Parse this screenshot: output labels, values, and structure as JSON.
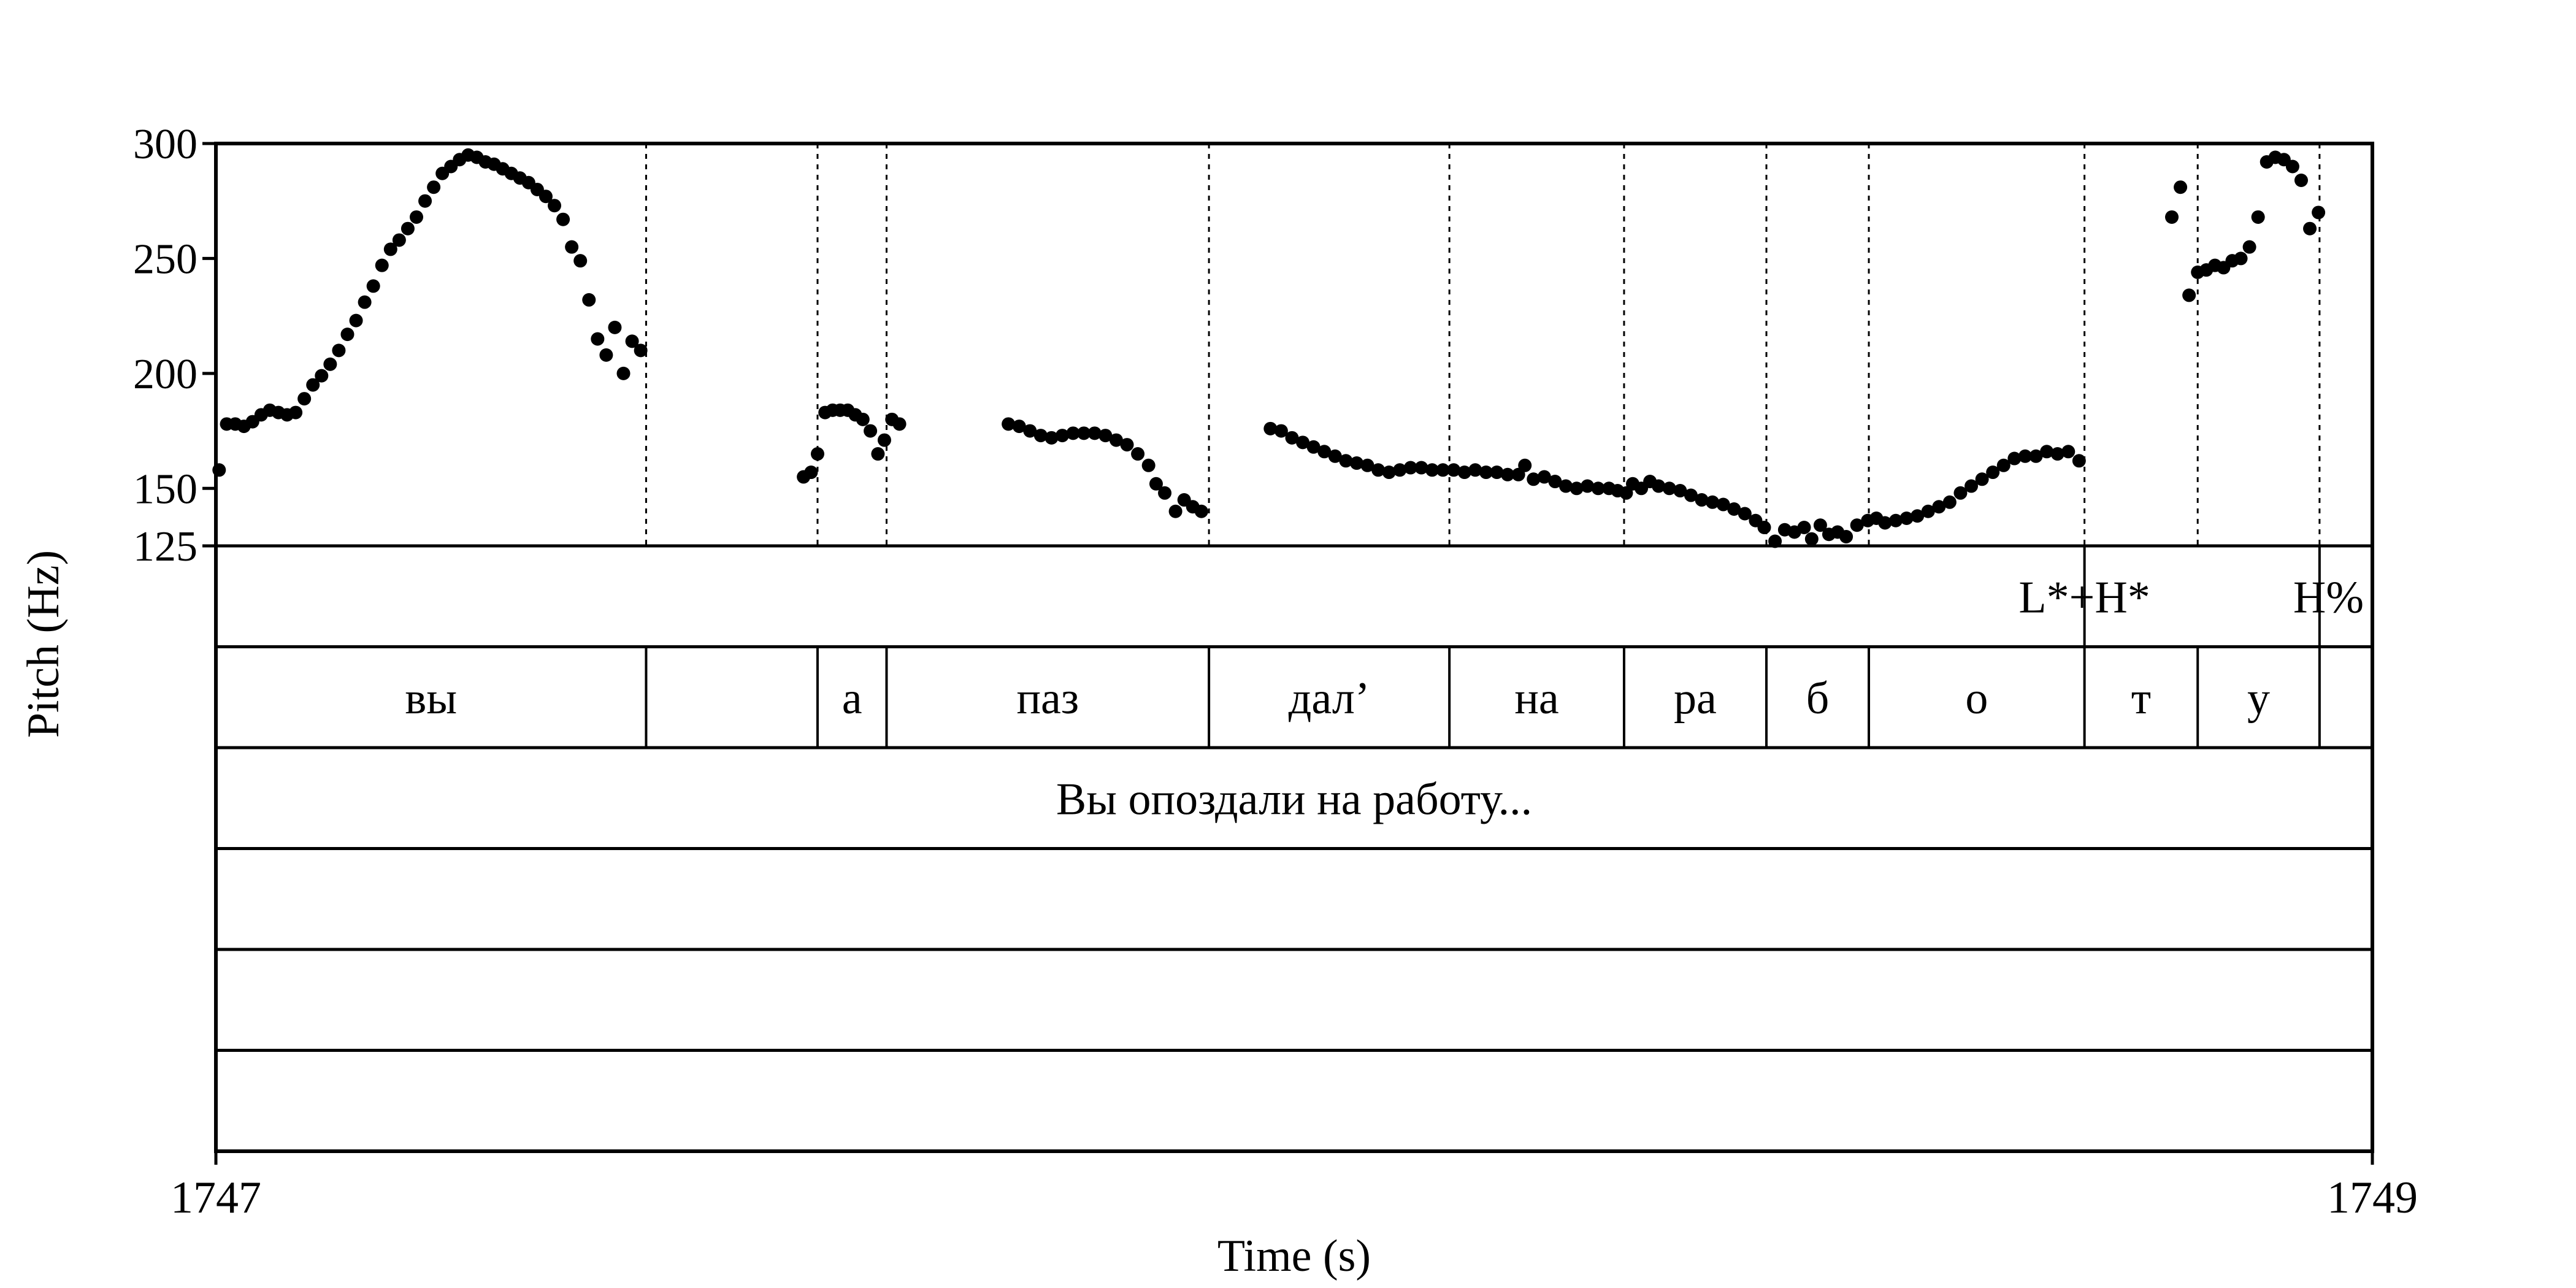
{
  "chart_data": {
    "type": "scatter",
    "x_axis": {
      "label": "Time (s)",
      "min": 1747,
      "max": 1749,
      "tick_labels": [
        "1747",
        "1749"
      ]
    },
    "y_axis": {
      "label": "Pitch (Hz)",
      "min": 125,
      "max": 300,
      "ticks": [
        125,
        150,
        200,
        250,
        300
      ],
      "tick_labels": [
        "125",
        "150",
        "200",
        "250",
        "300"
      ]
    },
    "boundaries": [
      1747.399,
      1747.558,
      1747.622,
      1747.921,
      1748.144,
      1748.306,
      1748.438,
      1748.533,
      1748.733,
      1748.838,
      1748.951
    ],
    "tiers": [
      {
        "name": "tones",
        "intervals": [],
        "points": [
          {
            "time": 1748.733,
            "label": "L*+H*"
          },
          {
            "time": 1748.951,
            "label": "H%"
          }
        ]
      },
      {
        "name": "syllables",
        "intervals": [
          {
            "start": 1747.0,
            "end": 1747.399,
            "label": "вы"
          },
          {
            "start": 1747.399,
            "end": 1747.558,
            "label": ""
          },
          {
            "start": 1747.558,
            "end": 1747.622,
            "label": "а"
          },
          {
            "start": 1747.622,
            "end": 1747.921,
            "label": "паз"
          },
          {
            "start": 1747.921,
            "end": 1748.144,
            "label": "дал’"
          },
          {
            "start": 1748.144,
            "end": 1748.306,
            "label": "на"
          },
          {
            "start": 1748.306,
            "end": 1748.438,
            "label": "ра"
          },
          {
            "start": 1748.438,
            "end": 1748.533,
            "label": "б"
          },
          {
            "start": 1748.533,
            "end": 1748.733,
            "label": "о"
          },
          {
            "start": 1748.733,
            "end": 1748.838,
            "label": "т"
          },
          {
            "start": 1748.838,
            "end": 1748.951,
            "label": "у"
          },
          {
            "start": 1748.951,
            "end": 1749.0,
            "label": ""
          }
        ],
        "points": []
      },
      {
        "name": "utterance",
        "intervals": [
          {
            "start": 1747.0,
            "end": 1749.0,
            "label": "Вы опоздали на работу..."
          }
        ],
        "points": []
      },
      {
        "name": "empty-1",
        "intervals": [],
        "points": []
      },
      {
        "name": "empty-2",
        "intervals": [],
        "points": []
      },
      {
        "name": "empty-3",
        "intervals": [],
        "points": []
      }
    ],
    "pitch_points": [
      [
        1747.003,
        158
      ],
      [
        1747.01,
        178
      ],
      [
        1747.018,
        178
      ],
      [
        1747.026,
        177
      ],
      [
        1747.034,
        179
      ],
      [
        1747.042,
        182
      ],
      [
        1747.05,
        184
      ],
      [
        1747.058,
        183
      ],
      [
        1747.066,
        182
      ],
      [
        1747.074,
        183
      ],
      [
        1747.082,
        189
      ],
      [
        1747.09,
        195
      ],
      [
        1747.098,
        199
      ],
      [
        1747.106,
        204
      ],
      [
        1747.114,
        210
      ],
      [
        1747.122,
        217
      ],
      [
        1747.13,
        223
      ],
      [
        1747.138,
        231
      ],
      [
        1747.146,
        238
      ],
      [
        1747.154,
        247
      ],
      [
        1747.162,
        254
      ],
      [
        1747.17,
        258
      ],
      [
        1747.178,
        263
      ],
      [
        1747.186,
        268
      ],
      [
        1747.194,
        275
      ],
      [
        1747.202,
        281
      ],
      [
        1747.21,
        287
      ],
      [
        1747.218,
        290
      ],
      [
        1747.226,
        293
      ],
      [
        1747.234,
        295
      ],
      [
        1747.242,
        294
      ],
      [
        1747.25,
        292
      ],
      [
        1747.258,
        291
      ],
      [
        1747.266,
        289
      ],
      [
        1747.274,
        287
      ],
      [
        1747.282,
        285
      ],
      [
        1747.29,
        283
      ],
      [
        1747.298,
        280
      ],
      [
        1747.306,
        277
      ],
      [
        1747.314,
        273
      ],
      [
        1747.322,
        267
      ],
      [
        1747.33,
        255
      ],
      [
        1747.338,
        249
      ],
      [
        1747.346,
        232
      ],
      [
        1747.354,
        215
      ],
      [
        1747.362,
        208
      ],
      [
        1747.37,
        220
      ],
      [
        1747.378,
        200
      ],
      [
        1747.386,
        214
      ],
      [
        1747.394,
        210
      ],
      [
        1747.545,
        155
      ],
      [
        1747.552,
        157
      ],
      [
        1747.558,
        165
      ],
      [
        1747.565,
        183
      ],
      [
        1747.572,
        184
      ],
      [
        1747.579,
        184
      ],
      [
        1747.586,
        184
      ],
      [
        1747.593,
        182
      ],
      [
        1747.6,
        180
      ],
      [
        1747.607,
        175
      ],
      [
        1747.614,
        165
      ],
      [
        1747.62,
        171
      ],
      [
        1747.627,
        180
      ],
      [
        1747.634,
        178
      ],
      [
        1747.735,
        178
      ],
      [
        1747.745,
        177
      ],
      [
        1747.755,
        175
      ],
      [
        1747.765,
        173
      ],
      [
        1747.775,
        172
      ],
      [
        1747.785,
        173
      ],
      [
        1747.795,
        174
      ],
      [
        1747.805,
        174
      ],
      [
        1747.815,
        174
      ],
      [
        1747.825,
        173
      ],
      [
        1747.835,
        171
      ],
      [
        1747.845,
        169
      ],
      [
        1747.855,
        165
      ],
      [
        1747.865,
        160
      ],
      [
        1747.872,
        152
      ],
      [
        1747.88,
        148
      ],
      [
        1747.89,
        140
      ],
      [
        1747.898,
        145
      ],
      [
        1747.906,
        142
      ],
      [
        1747.914,
        140
      ],
      [
        1747.978,
        176
      ],
      [
        1747.988,
        175
      ],
      [
        1747.998,
        172
      ],
      [
        1748.008,
        170
      ],
      [
        1748.018,
        168
      ],
      [
        1748.028,
        166
      ],
      [
        1748.038,
        164
      ],
      [
        1748.048,
        162
      ],
      [
        1748.058,
        161
      ],
      [
        1748.068,
        160
      ],
      [
        1748.078,
        158
      ],
      [
        1748.088,
        157
      ],
      [
        1748.098,
        158
      ],
      [
        1748.108,
        159
      ],
      [
        1748.118,
        159
      ],
      [
        1748.128,
        158
      ],
      [
        1748.138,
        158
      ],
      [
        1748.148,
        158
      ],
      [
        1748.158,
        157
      ],
      [
        1748.168,
        158
      ],
      [
        1748.178,
        157
      ],
      [
        1748.188,
        157
      ],
      [
        1748.198,
        156
      ],
      [
        1748.208,
        156
      ],
      [
        1748.214,
        160
      ],
      [
        1748.222,
        154
      ],
      [
        1748.232,
        155
      ],
      [
        1748.242,
        153
      ],
      [
        1748.252,
        151
      ],
      [
        1748.262,
        150
      ],
      [
        1748.272,
        151
      ],
      [
        1748.282,
        150
      ],
      [
        1748.292,
        150
      ],
      [
        1748.3,
        149
      ],
      [
        1748.308,
        148
      ],
      [
        1748.314,
        152
      ],
      [
        1748.322,
        150
      ],
      [
        1748.33,
        153
      ],
      [
        1748.338,
        151
      ],
      [
        1748.348,
        150
      ],
      [
        1748.358,
        149
      ],
      [
        1748.368,
        147
      ],
      [
        1748.378,
        145
      ],
      [
        1748.388,
        144
      ],
      [
        1748.398,
        143
      ],
      [
        1748.408,
        141
      ],
      [
        1748.418,
        139
      ],
      [
        1748.428,
        136
      ],
      [
        1748.436,
        133
      ],
      [
        1748.446,
        127
      ],
      [
        1748.455,
        132
      ],
      [
        1748.464,
        131
      ],
      [
        1748.473,
        133
      ],
      [
        1748.48,
        128
      ],
      [
        1748.488,
        134
      ],
      [
        1748.496,
        130
      ],
      [
        1748.504,
        131
      ],
      [
        1748.512,
        129
      ],
      [
        1748.522,
        134
      ],
      [
        1748.532,
        136
      ],
      [
        1748.54,
        137
      ],
      [
        1748.548,
        135
      ],
      [
        1748.558,
        136
      ],
      [
        1748.568,
        137
      ],
      [
        1748.578,
        138
      ],
      [
        1748.588,
        140
      ],
      [
        1748.598,
        142
      ],
      [
        1748.608,
        144
      ],
      [
        1748.618,
        148
      ],
      [
        1748.628,
        151
      ],
      [
        1748.638,
        154
      ],
      [
        1748.648,
        157
      ],
      [
        1748.658,
        160
      ],
      [
        1748.668,
        163
      ],
      [
        1748.678,
        164
      ],
      [
        1748.688,
        164
      ],
      [
        1748.698,
        166
      ],
      [
        1748.708,
        165
      ],
      [
        1748.718,
        166
      ],
      [
        1748.728,
        162
      ],
      [
        1748.814,
        268
      ],
      [
        1748.822,
        281
      ],
      [
        1748.83,
        234
      ],
      [
        1748.838,
        244
      ],
      [
        1748.846,
        245
      ],
      [
        1748.854,
        247
      ],
      [
        1748.862,
        246
      ],
      [
        1748.87,
        249
      ],
      [
        1748.878,
        250
      ],
      [
        1748.886,
        255
      ],
      [
        1748.894,
        268
      ],
      [
        1748.902,
        292
      ],
      [
        1748.91,
        294
      ],
      [
        1748.918,
        293
      ],
      [
        1748.926,
        290
      ],
      [
        1748.934,
        284
      ],
      [
        1748.942,
        263
      ],
      [
        1748.95,
        270
      ]
    ]
  }
}
